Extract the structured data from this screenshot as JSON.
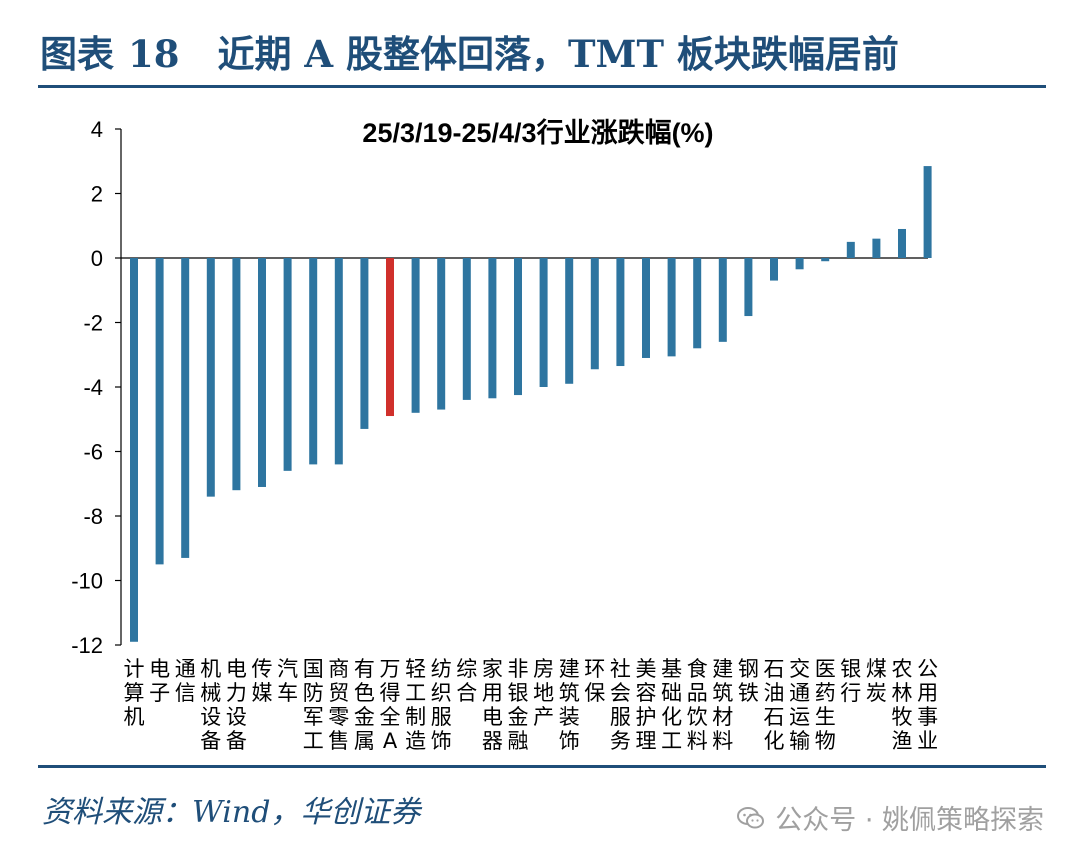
{
  "header": {
    "figure_label": "图表",
    "figure_number": "18",
    "title": "近期 A 股整体回落，TMT 板块跌幅居前"
  },
  "footer": {
    "source": "资料来源：Wind，华创证券"
  },
  "watermark": {
    "text": "公众号 · 姚佩策略探索"
  },
  "colors": {
    "bar": "#2e75a0",
    "highlight_bar": "#d0302b",
    "header": "#1f4e79",
    "axis": "#000000"
  },
  "chart_data": {
    "type": "bar",
    "title": "25/3/19-25/4/3行业涨跌幅(%)",
    "xlabel": "",
    "ylabel": "",
    "ylim": [
      -12,
      4
    ],
    "yticks": [
      4,
      2,
      0,
      -2,
      -4,
      -6,
      -8,
      -10,
      -12
    ],
    "highlight": "万得全A",
    "categories": [
      "计算机",
      "电子",
      "通信",
      "机械设备",
      "电力设备",
      "传媒",
      "汽车",
      "国防军工",
      "商贸零售",
      "有色金属",
      "万得全A",
      "轻工制造",
      "纺织服饰",
      "综合",
      "家用电器",
      "非银金融",
      "房地产",
      "建筑装饰",
      "环保",
      "社会服务",
      "美容护理",
      "基础化工",
      "食品饮料",
      "建筑材料",
      "钢铁",
      "石油石化",
      "交通运输",
      "医药生物",
      "银行",
      "煤炭",
      "农林牧渔",
      "公用事业"
    ],
    "category_labels": [
      [
        "计",
        "算",
        "机"
      ],
      [
        "电",
        "子"
      ],
      [
        "通",
        "信"
      ],
      [
        "机",
        "械",
        "设",
        "备"
      ],
      [
        "电",
        "力",
        "设",
        "备"
      ],
      [
        "传",
        "媒"
      ],
      [
        "汽",
        "车"
      ],
      [
        "国",
        "防",
        "军",
        "工"
      ],
      [
        "商",
        "贸",
        "零",
        "售"
      ],
      [
        "有",
        "色",
        "金",
        "属"
      ],
      [
        "万",
        "得",
        "全",
        "A"
      ],
      [
        "轻",
        "工",
        "制",
        "造"
      ],
      [
        "纺",
        "织",
        "服",
        "饰"
      ],
      [
        "综",
        "合"
      ],
      [
        "家",
        "用",
        "电",
        "器"
      ],
      [
        "非",
        "银",
        "金",
        "融"
      ],
      [
        "房",
        "地",
        "产"
      ],
      [
        "建",
        "筑",
        "装",
        "饰"
      ],
      [
        "环",
        "保"
      ],
      [
        "社",
        "会",
        "服",
        "务"
      ],
      [
        "美",
        "容",
        "护",
        "理"
      ],
      [
        "基",
        "础",
        "化",
        "工"
      ],
      [
        "食",
        "品",
        "饮",
        "料"
      ],
      [
        "建",
        "筑",
        "材",
        "料"
      ],
      [
        "钢",
        "铁"
      ],
      [
        "石",
        "油",
        "石",
        "化"
      ],
      [
        "交",
        "通",
        "运",
        "输"
      ],
      [
        "医",
        "药",
        "生",
        "物"
      ],
      [
        "银",
        "行"
      ],
      [
        "煤",
        "炭"
      ],
      [
        "农",
        "林",
        "牧",
        "渔"
      ],
      [
        "公",
        "用",
        "事",
        "业"
      ]
    ],
    "values": [
      -11.9,
      -9.5,
      -9.3,
      -7.4,
      -7.2,
      -7.1,
      -6.6,
      -6.4,
      -6.4,
      -5.3,
      -4.9,
      -4.8,
      -4.7,
      -4.4,
      -4.35,
      -4.25,
      -4.0,
      -3.9,
      -3.45,
      -3.35,
      -3.1,
      -3.05,
      -2.8,
      -2.6,
      -1.8,
      -0.7,
      -0.35,
      -0.1,
      0.5,
      0.6,
      0.9,
      2.85
    ]
  }
}
